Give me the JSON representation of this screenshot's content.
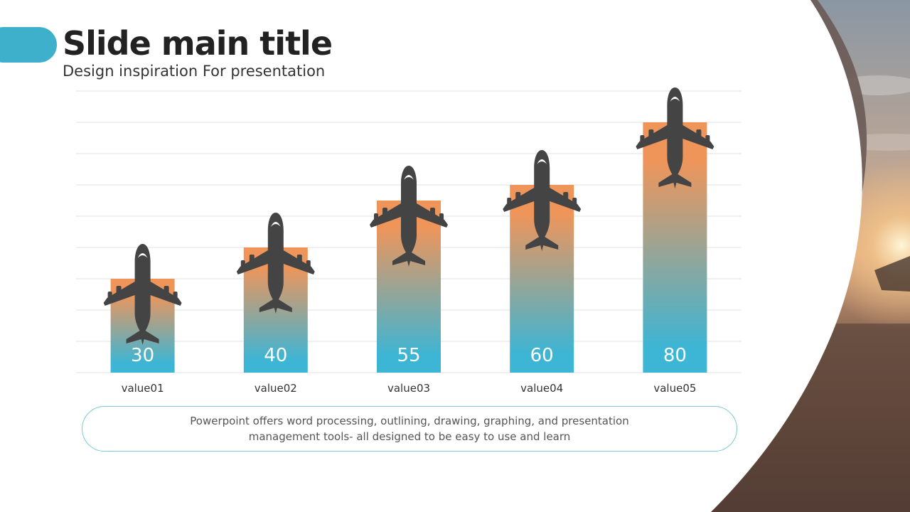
{
  "slide": {
    "title": "Slide main title",
    "subtitle": "Design inspiration For presentation",
    "caption": "Powerpoint offers word processing, outlining, drawing, graphing, and presentation management tools- all designed to be easy to use and learn"
  },
  "colors": {
    "accent": "#3fb0cc",
    "bar_top": "#f0955a",
    "bar_bottom": "#3db5d4",
    "plane": "#444444",
    "gridline": "#e2e2e2"
  },
  "chart_data": {
    "type": "bar",
    "categories": [
      "value01",
      "value02",
      "value03",
      "value04",
      "value05"
    ],
    "values": [
      30,
      40,
      55,
      60,
      80
    ],
    "data_labels": [
      "30",
      "40",
      "55",
      "60",
      "80"
    ],
    "ylim": [
      0,
      90
    ],
    "grid": true,
    "marker_icon": "airplane-icon"
  }
}
